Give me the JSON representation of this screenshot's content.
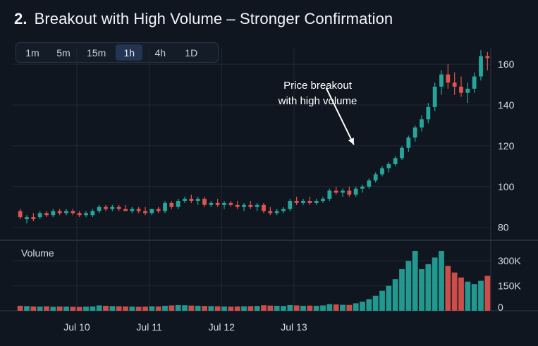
{
  "header": {
    "number": "2.",
    "title": "Breakout with High Volume – Stronger Confirmation"
  },
  "timeframes": {
    "options": [
      "1m",
      "5m",
      "15m",
      "1h",
      "4h",
      "1D"
    ],
    "selected": "1h"
  },
  "annotation": {
    "line1": "Price breakout",
    "line2": "with high volume"
  },
  "colors": {
    "up": "#26a69a",
    "down": "#e0544f",
    "neutral": "#c4957a",
    "grid": "#1f2a37",
    "axis_text": "#d6dde6"
  },
  "chart_data": {
    "type": "candlestick",
    "volume_title": "Volume",
    "price_ticks": [
      80,
      100,
      120,
      140,
      160
    ],
    "price_tick_labels": [
      "80",
      "100",
      "120",
      "140",
      "160"
    ],
    "volume_ticks": [
      0,
      150000,
      300000
    ],
    "volume_tick_labels": [
      "0",
      "150K",
      "300K"
    ],
    "x_labels": [
      "Jul 10",
      "Jul 11",
      "Jul 12",
      "Jul 13"
    ],
    "ylim_price": [
      74,
      168
    ],
    "ylim_volume": [
      0,
      360000
    ],
    "candles": [
      {
        "o": 88,
        "h": 89,
        "l": 84,
        "c": 85
      },
      {
        "o": 84,
        "h": 86,
        "l": 82,
        "c": 85
      },
      {
        "o": 85,
        "h": 87,
        "l": 83,
        "c": 84
      },
      {
        "o": 85,
        "h": 88,
        "l": 84,
        "c": 87
      },
      {
        "o": 87,
        "h": 88,
        "l": 85,
        "c": 86
      },
      {
        "o": 86,
        "h": 89,
        "l": 85,
        "c": 88
      },
      {
        "o": 88,
        "h": 89,
        "l": 86,
        "c": 87
      },
      {
        "o": 87,
        "h": 89,
        "l": 86,
        "c": 88
      },
      {
        "o": 88,
        "h": 89,
        "l": 86,
        "c": 87
      },
      {
        "o": 87,
        "h": 88,
        "l": 85,
        "c": 86
      },
      {
        "o": 86,
        "h": 88,
        "l": 85,
        "c": 87
      },
      {
        "o": 86,
        "h": 89,
        "l": 85,
        "c": 88
      },
      {
        "o": 88,
        "h": 91,
        "l": 87,
        "c": 90
      },
      {
        "o": 90,
        "h": 91,
        "l": 88,
        "c": 89
      },
      {
        "o": 89,
        "h": 91,
        "l": 88,
        "c": 90
      },
      {
        "o": 90,
        "h": 91,
        "l": 88,
        "c": 89
      },
      {
        "o": 89,
        "h": 91,
        "l": 88,
        "c": 88
      },
      {
        "o": 88,
        "h": 90,
        "l": 87,
        "c": 89
      },
      {
        "o": 89,
        "h": 90,
        "l": 87,
        "c": 88
      },
      {
        "o": 88,
        "h": 90,
        "l": 86,
        "c": 87
      },
      {
        "o": 87,
        "h": 89,
        "l": 86,
        "c": 89
      },
      {
        "o": 89,
        "h": 90,
        "l": 87,
        "c": 88
      },
      {
        "o": 88,
        "h": 93,
        "l": 87,
        "c": 92
      },
      {
        "o": 92,
        "h": 93,
        "l": 89,
        "c": 90
      },
      {
        "o": 90,
        "h": 94,
        "l": 89,
        "c": 93
      },
      {
        "o": 93,
        "h": 95,
        "l": 92,
        "c": 94
      },
      {
        "o": 94,
        "h": 96,
        "l": 92,
        "c": 93
      },
      {
        "o": 93,
        "h": 95,
        "l": 91,
        "c": 94
      },
      {
        "o": 94,
        "h": 95,
        "l": 90,
        "c": 91
      },
      {
        "o": 91,
        "h": 93,
        "l": 90,
        "c": 92
      },
      {
        "o": 92,
        "h": 94,
        "l": 90,
        "c": 91
      },
      {
        "o": 91,
        "h": 93,
        "l": 89,
        "c": 92
      },
      {
        "o": 92,
        "h": 93,
        "l": 90,
        "c": 91
      },
      {
        "o": 91,
        "h": 93,
        "l": 89,
        "c": 90
      },
      {
        "o": 90,
        "h": 92,
        "l": 88,
        "c": 91
      },
      {
        "o": 91,
        "h": 93,
        "l": 89,
        "c": 90
      },
      {
        "o": 90,
        "h": 92,
        "l": 88,
        "c": 91
      },
      {
        "o": 91,
        "h": 92,
        "l": 87,
        "c": 88
      },
      {
        "o": 88,
        "h": 90,
        "l": 86,
        "c": 87
      },
      {
        "o": 87,
        "h": 89,
        "l": 86,
        "c": 88
      },
      {
        "o": 88,
        "h": 90,
        "l": 87,
        "c": 89
      },
      {
        "o": 89,
        "h": 94,
        "l": 88,
        "c": 93
      },
      {
        "o": 93,
        "h": 95,
        "l": 91,
        "c": 92
      },
      {
        "o": 92,
        "h": 94,
        "l": 91,
        "c": 93
      },
      {
        "o": 93,
        "h": 95,
        "l": 91,
        "c": 92
      },
      {
        "o": 92,
        "h": 94,
        "l": 91,
        "c": 93
      },
      {
        "o": 93,
        "h": 95,
        "l": 92,
        "c": 94
      },
      {
        "o": 94,
        "h": 99,
        "l": 93,
        "c": 98
      },
      {
        "o": 98,
        "h": 100,
        "l": 96,
        "c": 97
      },
      {
        "o": 97,
        "h": 99,
        "l": 95,
        "c": 98
      },
      {
        "o": 98,
        "h": 100,
        "l": 95,
        "c": 96
      },
      {
        "o": 96,
        "h": 100,
        "l": 95,
        "c": 99
      },
      {
        "o": 99,
        "h": 101,
        "l": 97,
        "c": 100
      },
      {
        "o": 100,
        "h": 104,
        "l": 99,
        "c": 103
      },
      {
        "o": 103,
        "h": 107,
        "l": 102,
        "c": 106
      },
      {
        "o": 106,
        "h": 110,
        "l": 105,
        "c": 109
      },
      {
        "o": 109,
        "h": 112,
        "l": 107,
        "c": 111
      },
      {
        "o": 111,
        "h": 115,
        "l": 110,
        "c": 114
      },
      {
        "o": 114,
        "h": 120,
        "l": 113,
        "c": 119
      },
      {
        "o": 119,
        "h": 125,
        "l": 117,
        "c": 124
      },
      {
        "o": 124,
        "h": 130,
        "l": 122,
        "c": 129
      },
      {
        "o": 129,
        "h": 135,
        "l": 127,
        "c": 133
      },
      {
        "o": 133,
        "h": 141,
        "l": 131,
        "c": 139
      },
      {
        "o": 139,
        "h": 151,
        "l": 137,
        "c": 149
      },
      {
        "o": 149,
        "h": 157,
        "l": 145,
        "c": 155
      },
      {
        "o": 155,
        "h": 160,
        "l": 148,
        "c": 151
      },
      {
        "o": 151,
        "h": 156,
        "l": 145,
        "c": 149
      },
      {
        "o": 149,
        "h": 154,
        "l": 144,
        "c": 146
      },
      {
        "o": 146,
        "h": 151,
        "l": 141,
        "c": 148
      },
      {
        "o": 148,
        "h": 156,
        "l": 146,
        "c": 154
      },
      {
        "o": 154,
        "h": 167,
        "l": 152,
        "c": 164
      },
      {
        "o": 164,
        "h": 166,
        "l": 157,
        "c": 163
      }
    ],
    "volume": [
      30000,
      28000,
      26000,
      25000,
      27000,
      24000,
      26000,
      25000,
      24000,
      23000,
      25000,
      26000,
      32000,
      30000,
      28000,
      27000,
      26000,
      25000,
      24000,
      25000,
      27000,
      26000,
      30000,
      32000,
      34000,
      33000,
      31000,
      30000,
      29000,
      28000,
      27000,
      26000,
      25000,
      26000,
      27000,
      28000,
      29000,
      33000,
      31000,
      30000,
      29000,
      34000,
      32000,
      30000,
      31000,
      30000,
      32000,
      40000,
      38000,
      36000,
      35000,
      45000,
      55000,
      70000,
      90000,
      120000,
      150000,
      190000,
      250000,
      300000,
      360000,
      250000,
      280000,
      320000,
      360000,
      270000,
      230000,
      200000,
      175000,
      160000,
      180000,
      210000
    ],
    "x_label_index": [
      6,
      17,
      28,
      39
    ],
    "annotation_arrow": {
      "from_index": 47,
      "from_price": 140,
      "to_index": 51,
      "to_price": 124
    }
  }
}
